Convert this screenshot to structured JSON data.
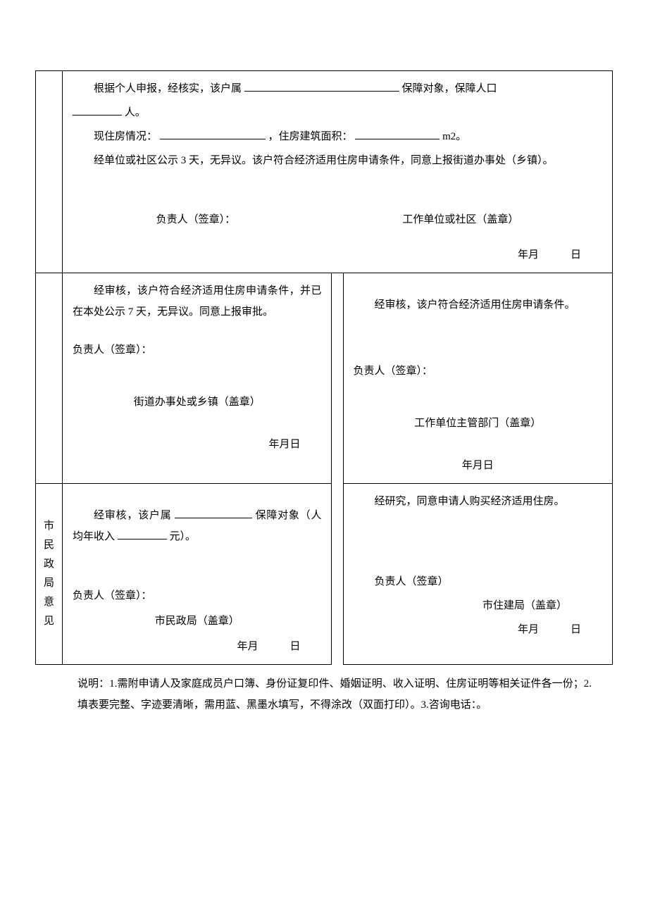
{
  "row1": {
    "line1_a": "根据个人申报，经核实，该户属",
    "line1_b": "保障对象，保障人口",
    "line2_a": "人。",
    "line3_a": "现住房情况：",
    "line3_b": "，住房建筑面积：",
    "line3_c": "m2。",
    "line4": "经单位或社区公示 3 天，无异议。该户符合经济适用住房申请条件，同意上报街道办事处（乡镇）。",
    "sig1": "负责人（签章）：",
    "sig2": "工作单位或社区（盖章）",
    "date": "年月　　　日"
  },
  "row2": {
    "left": {
      "text": "经审核，该户符合经济适用住房申请条件，并已在本处公示 7 天，无异议。同意上报审批。",
      "sig1": "负责人（签章）：",
      "sig2": "街道办事处或乡镇（盖章）",
      "date": "年月日"
    },
    "right": {
      "text": "经审核，该户符合经济适用住房申请条件。",
      "sig1": "负责人（签章）：",
      "sig2": "工作单位主管部门（盖章）",
      "date": "年月日"
    }
  },
  "row3": {
    "label": "市民政局意见",
    "left": {
      "t1": "经审核，该户属",
      "t2": "保障对象（人均年收入",
      "t3": "元）。",
      "sig1": "负责人（签章）：",
      "sig2": "市民政局（盖章）",
      "date": "年月　　　日"
    },
    "right": {
      "text": "经研究，同意申请人购买经济适用住房。",
      "sig1": "负责人（签章）",
      "sig2": "市住建局（盖章）",
      "date": "年月　　　日"
    }
  },
  "note": "说明：1.需附申请人及家庭成员户口簿、身份证复印件、婚姻证明、收入证明、住房证明等相关证件各一份；2.填表要完整、字迹要清晰，需用蓝、黑墨水填写，不得涂改（双面打印）。3.咨询电话：。"
}
